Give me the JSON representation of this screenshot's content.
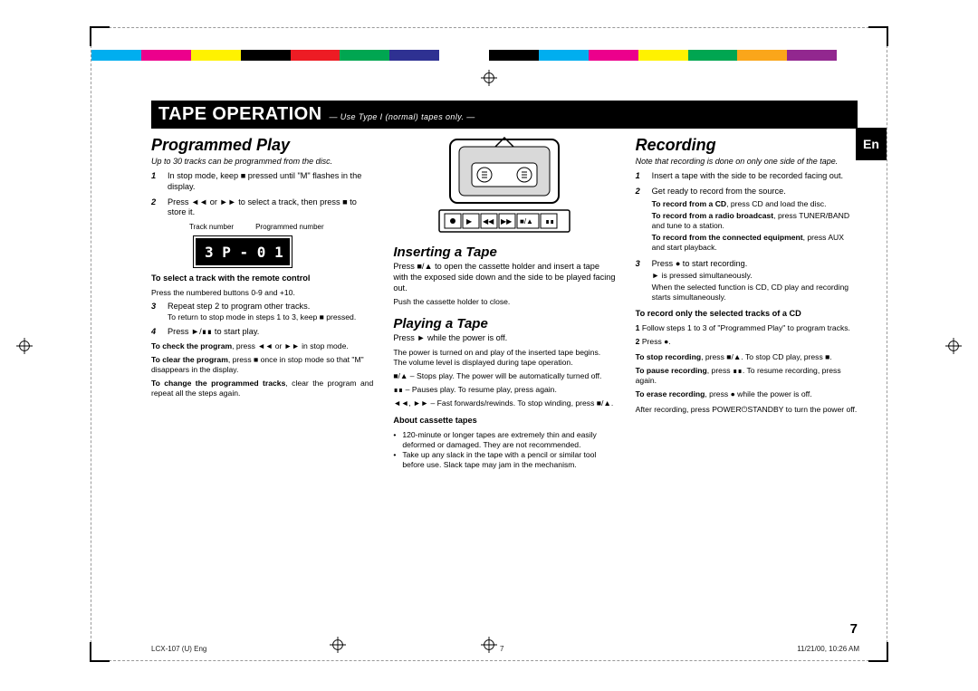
{
  "colorbar": [
    "#00aeef",
    "#ec008c",
    "#fff200",
    "#000000",
    "#ed1c24",
    "#00a651",
    "#2e3192",
    "#ffffff",
    "#000000",
    "#00aeef",
    "#ec008c",
    "#fff200",
    "#00a651",
    "#faa61a",
    "#92278f",
    "#ffffff"
  ],
  "title": "TAPE OPERATION",
  "title_sub": "— Use Type I (normal) tapes only. —",
  "en_tab": "En",
  "page_number": "7",
  "footer_left": "LCX-107 (U) Eng",
  "footer_mid": "7",
  "footer_right": "11/21/00, 10:26 AM",
  "col1": {
    "h": "Programmed Play",
    "note": "Up to 30 tracks can be programmed from the disc.",
    "s1": "In stop mode, keep ■ pressed until \"M\" flashes in the display.",
    "s2": "Press ◄◄ or ►► to select a track, then press ■ to store it.",
    "tn_l": "Track number",
    "tn_r": "Programmed number",
    "lcd": "3  P - 0 1",
    "remote_h": "To select a track with the remote control",
    "remote_b": "Press the numbered buttons 0-9 and +10.",
    "s3": "Repeat step 2 to program other tracks.",
    "s3b": "To return to stop mode in steps 1 to 3, keep ■ pressed.",
    "s4": "Press ►/∎∎ to start play.",
    "chk_h": "To check the program",
    "chk_b": ", press ◄◄ or ►► in stop mode.",
    "clr_h": "To clear the program",
    "clr_b": ", press ■ once in stop mode so that \"M\" disappears in the display.",
    "chg_h": "To change the programmed tracks",
    "chg_b": ", clear the program and repeat all the steps again."
  },
  "col2": {
    "insert_h": "Inserting a Tape",
    "insert_b": "Press ■/▲ to open the cassette holder and insert a tape with the exposed side down and the side to be played facing out.",
    "insert_b2": "Push the cassette holder to close.",
    "play_h": "Playing a Tape",
    "play_b1": "Press ► while the power is off.",
    "play_b2": "The power is turned on and play of the inserted tape begins. The volume level is displayed during tape operation.",
    "play_b3": "■/▲ – Stops play. The power will be automatically turned off.",
    "play_b4": "∎∎ – Pauses play. To resume play, press again.",
    "play_b5": "◄◄, ►► – Fast forwards/rewinds. To stop winding, press ■/▲.",
    "about_h": "About cassette tapes",
    "about_b1": "120-minute or longer tapes are extremely thin and easily deformed or damaged. They are not recommended.",
    "about_b2": "Take up any slack in the tape with a pencil or similar tool before use. Slack tape may jam in the mechanism."
  },
  "col3": {
    "h": "Recording",
    "note": "Note that recording is done on only one side of the tape.",
    "s1": "Insert a tape with the side to be recorded facing out.",
    "s2": "Get ready to record from the source.",
    "s2a_h": "To record from a CD",
    "s2a_b": ", press CD and load the disc.",
    "s2b_h": "To record from a radio broadcast",
    "s2b_b": ", press TUNER/BAND and tune to a station.",
    "s2c_h": "To record from the connected equipment",
    "s2c_b": ", press AUX and start playback.",
    "s3": "Press ● to start recording.",
    "s3b": "► is pressed simultaneously.",
    "s3c": "When the selected function is CD, CD play and recording starts simultaneously.",
    "sel_h": "To record only the selected tracks of a CD",
    "sel_b1": "Follow steps 1 to 3 of \"Programmed Play\" to program tracks.",
    "sel_b2": "Press ●.",
    "stop_h": "To stop recording",
    "stop_b": ", press ■/▲. To stop CD play, press ■.",
    "pause_h": "To pause recording",
    "pause_b": ", press ∎∎. To resume recording, press again.",
    "erase_h": "To erase recording",
    "erase_b": ", press ● while the power is off.",
    "after": "After recording, press POWER⏻STANDBY to turn the power off."
  }
}
